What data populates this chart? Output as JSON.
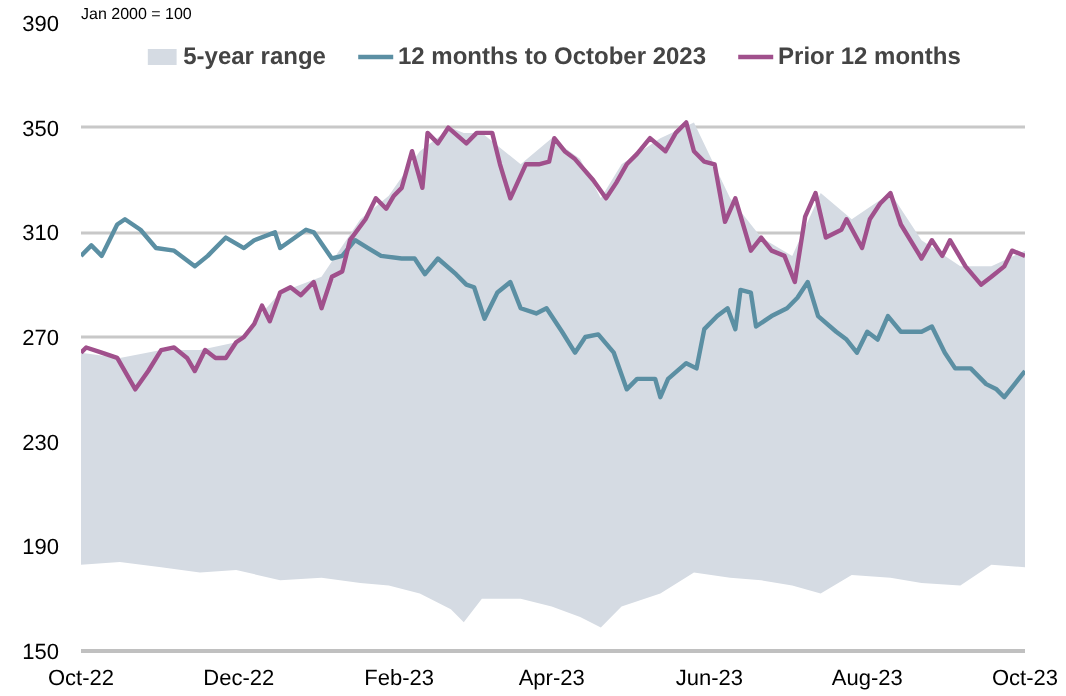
{
  "chart_data": {
    "type": "line",
    "annotations": [
      "Jan 2000 = 100"
    ],
    "series": [
      {
        "name": "5-year range",
        "type": "area",
        "color": "#d5dbe3",
        "x": [
          "2022-10-01",
          "2022-10-16",
          "2022-11-01",
          "2022-11-16",
          "2022-11-30",
          "2022-12-17",
          "2023-01-02",
          "2023-01-17",
          "2023-01-28",
          "2023-02-09",
          "2023-02-21",
          "2023-02-26",
          "2023-03-05",
          "2023-03-20",
          "2023-04-01",
          "2023-04-12",
          "2023-04-20",
          "2023-04-28",
          "2023-05-13",
          "2023-05-26",
          "2023-06-09",
          "2023-06-21",
          "2023-07-03",
          "2023-07-14",
          "2023-07-26",
          "2023-08-10",
          "2023-08-22",
          "2023-09-06",
          "2023-09-18",
          "2023-10-01"
        ],
        "values": [
          null,
          null,
          null,
          null,
          null,
          null,
          null,
          null,
          null,
          null,
          null,
          null,
          null,
          null,
          null,
          null,
          null,
          null,
          null,
          null,
          null,
          null,
          null,
          null,
          null,
          null,
          null,
          null,
          null,
          null
        ],
        "lower": [
          183,
          184,
          182,
          180,
          181,
          177,
          178,
          176,
          175,
          172,
          166,
          161,
          170,
          170,
          167,
          163,
          159,
          167,
          172,
          180,
          178,
          177,
          175,
          172,
          179,
          178,
          176,
          175,
          183,
          182
        ],
        "upper": [
          264,
          262,
          265,
          265,
          268,
          287,
          293,
          315,
          324,
          341,
          350,
          348,
          348,
          336,
          346,
          338,
          323,
          336,
          346,
          352,
          323,
          308,
          301,
          325,
          315,
          325,
          307,
          297,
          297,
          303
        ]
      },
      {
        "name": "12 months to October 2023",
        "color": "#5b8fa3",
        "x": [
          "2022-10-01",
          "2022-10-05",
          "2022-10-09",
          "2022-10-15",
          "2022-10-18",
          "2022-10-24",
          "2022-10-30",
          "2022-11-06",
          "2022-11-14",
          "2022-11-19",
          "2022-11-26",
          "2022-12-03",
          "2022-12-07",
          "2022-12-15",
          "2022-12-17",
          "2022-12-27",
          "2022-12-30",
          "2023-01-06",
          "2023-01-10",
          "2023-01-15",
          "2023-01-20",
          "2023-01-25",
          "2023-02-02",
          "2023-02-07",
          "2023-02-11",
          "2023-02-16",
          "2023-02-23",
          "2023-02-27",
          "2023-03-02",
          "2023-03-06",
          "2023-03-11",
          "2023-03-16",
          "2023-03-20",
          "2023-03-26",
          "2023-03-30",
          "2023-04-05",
          "2023-04-10",
          "2023-04-14",
          "2023-04-19",
          "2023-04-25",
          "2023-04-30",
          "2023-05-04",
          "2023-05-11",
          "2023-05-13",
          "2023-05-16",
          "2023-05-23",
          "2023-05-27",
          "2023-05-30",
          "2023-06-04",
          "2023-06-08",
          "2023-06-11",
          "2023-06-13",
          "2023-06-17",
          "2023-06-19",
          "2023-06-25",
          "2023-07-01",
          "2023-07-05",
          "2023-07-09",
          "2023-07-13",
          "2023-07-20",
          "2023-07-24",
          "2023-07-28",
          "2023-08-01",
          "2023-08-05",
          "2023-08-09",
          "2023-08-14",
          "2023-08-22",
          "2023-08-26",
          "2023-08-31",
          "2023-09-04",
          "2023-09-10",
          "2023-09-16",
          "2023-09-20",
          "2023-09-23",
          "2023-09-27",
          "2023-10-01"
        ],
        "values": [
          301,
          305,
          301,
          313,
          315,
          311,
          304,
          303,
          297,
          301,
          308,
          304,
          307,
          310,
          304,
          311,
          310,
          300,
          301,
          307,
          304,
          301,
          300,
          300,
          294,
          300,
          294,
          290,
          289,
          277,
          287,
          291,
          281,
          279,
          281,
          272,
          264,
          270,
          271,
          264,
          250,
          254,
          254,
          247,
          254,
          260,
          258,
          273,
          278,
          281,
          273,
          288,
          287,
          274,
          278,
          281,
          285,
          291,
          278,
          272,
          269,
          264,
          272,
          269,
          278,
          272,
          272,
          274,
          264,
          258,
          258,
          252,
          250,
          247,
          252,
          257
        ]
      },
      {
        "name": "Prior 12 months",
        "color": "#a0508c",
        "x": [
          "2022-10-01",
          "2022-10-03",
          "2022-10-09",
          "2022-10-15",
          "2022-10-22",
          "2022-10-27",
          "2022-11-01",
          "2022-11-06",
          "2022-11-11",
          "2022-11-14",
          "2022-11-18",
          "2022-11-22",
          "2022-11-26",
          "2022-11-30",
          "2022-12-03",
          "2022-12-07",
          "2022-12-10",
          "2022-12-13",
          "2022-12-17",
          "2022-12-21",
          "2022-12-25",
          "2022-12-30",
          "2023-01-02",
          "2023-01-06",
          "2023-01-10",
          "2023-01-13",
          "2023-01-19",
          "2023-01-23",
          "2023-01-27",
          "2023-01-30",
          "2023-02-02",
          "2023-02-06",
          "2023-02-10",
          "2023-02-12",
          "2023-02-16",
          "2023-02-20",
          "2023-02-27",
          "2023-03-03",
          "2023-03-09",
          "2023-03-12",
          "2023-03-16",
          "2023-03-22",
          "2023-03-27",
          "2023-03-31",
          "2023-04-02",
          "2023-04-06",
          "2023-04-10",
          "2023-04-17",
          "2023-04-22",
          "2023-04-26",
          "2023-04-30",
          "2023-05-04",
          "2023-05-09",
          "2023-05-15",
          "2023-05-19",
          "2023-05-23",
          "2023-05-26",
          "2023-05-30",
          "2023-06-03",
          "2023-06-07",
          "2023-06-11",
          "2023-06-17",
          "2023-06-21",
          "2023-06-25",
          "2023-06-30",
          "2023-07-04",
          "2023-07-08",
          "2023-07-12",
          "2023-07-16",
          "2023-07-22",
          "2023-07-24",
          "2023-07-30",
          "2023-08-02",
          "2023-08-06",
          "2023-08-10",
          "2023-08-14",
          "2023-08-22",
          "2023-08-26",
          "2023-08-30",
          "2023-09-02",
          "2023-09-08",
          "2023-09-14",
          "2023-09-18",
          "2023-09-23",
          "2023-09-26",
          "2023-10-01"
        ],
        "values": [
          264,
          266,
          264,
          262,
          250,
          257,
          265,
          266,
          262,
          257,
          265,
          262,
          262,
          268,
          270,
          275,
          282,
          276,
          287,
          289,
          286,
          291,
          281,
          293,
          295,
          307,
          315,
          323,
          319,
          324,
          327,
          341,
          327,
          348,
          344,
          350,
          344,
          348,
          348,
          336,
          323,
          336,
          336,
          337,
          346,
          341,
          338,
          330,
          323,
          329,
          336,
          340,
          346,
          341,
          348,
          352,
          341,
          337,
          336,
          314,
          323,
          303,
          308,
          303,
          301,
          291,
          316,
          325,
          308,
          311,
          315,
          304,
          315,
          321,
          325,
          313,
          300,
          307,
          301,
          307,
          297,
          290,
          293,
          297,
          303,
          301
        ]
      }
    ],
    "xlim": [
      "2022-10-01",
      "2023-10-01"
    ],
    "xticks": [
      {
        "value": "2022-10-01",
        "label": "Oct-22"
      },
      {
        "value": "2022-12-01",
        "label": "Dec-22"
      },
      {
        "value": "2023-02-01",
        "label": "Feb-23"
      },
      {
        "value": "2023-04-01",
        "label": "Apr-23"
      },
      {
        "value": "2023-06-01",
        "label": "Jun-23"
      },
      {
        "value": "2023-08-01",
        "label": "Aug-23"
      },
      {
        "value": "2023-10-01",
        "label": "Oct-23"
      }
    ],
    "ylim": [
      150,
      390
    ],
    "yticks": [
      150,
      190,
      230,
      270,
      310,
      350,
      390
    ],
    "grid": "y",
    "legend": "top",
    "line_style": "solid"
  }
}
